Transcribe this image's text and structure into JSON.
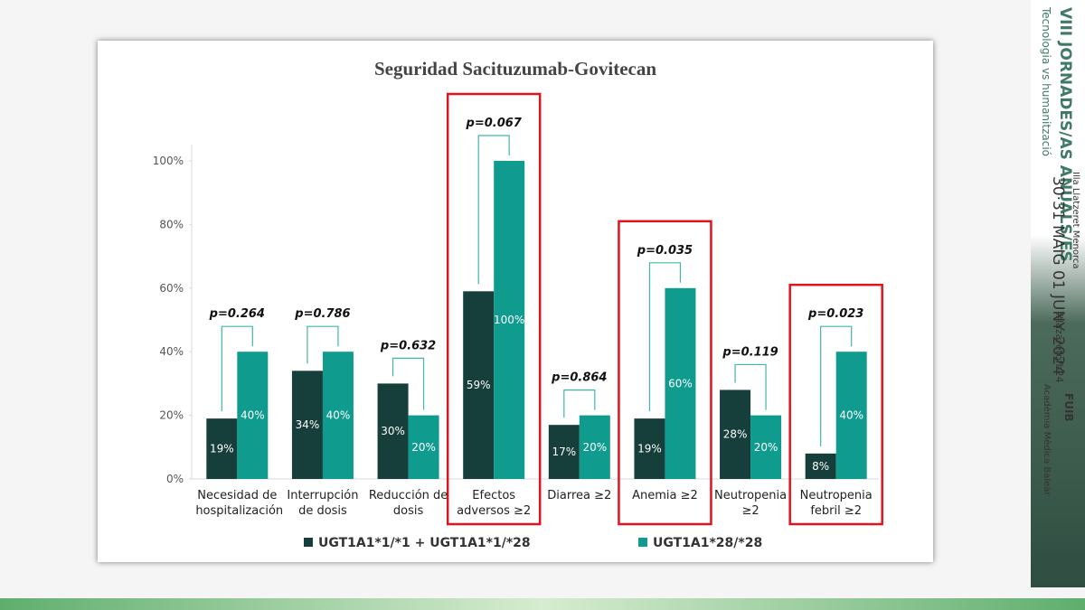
{
  "chart_data": {
    "type": "bar",
    "title": "Seguridad Sacituzumab-Govitecan",
    "categories": [
      "Necesidad de hospitalización",
      "Interrupción de dosis",
      "Reducción de dosis",
      "Efectos adversos ≥2",
      "Diarrea ≥2",
      "Anemia ≥2",
      "Neutropenia ≥2",
      "Neutropenia febril ≥2"
    ],
    "series": [
      {
        "name": "UGT1A1*1/*1 + UGT1A1*1/*28",
        "color": "#163f3b",
        "values": [
          19,
          34,
          30,
          59,
          17,
          19,
          28,
          8
        ],
        "value_labels": [
          "19%",
          "34%",
          "30%",
          "59%",
          "17%",
          "19%",
          "28%",
          "8%"
        ]
      },
      {
        "name": "UGT1A1*28/*28",
        "color": "#0f9b8e",
        "values": [
          40,
          40,
          20,
          100,
          20,
          60,
          20,
          40
        ],
        "value_labels": [
          "40%",
          "40%",
          "20%",
          "100%",
          "20%",
          "60%",
          "20%",
          "40%"
        ]
      }
    ],
    "annotations": [
      "p=0.264",
      "p=0.786",
      "p=0.632",
      "p=0.067",
      "p=0.864",
      "p=0.035",
      "p=0.119",
      "p=0.023"
    ],
    "highlighted": [
      3,
      5,
      7
    ],
    "highlight_color": "#e0141e",
    "ylim": [
      0,
      100
    ],
    "yticks": [
      {
        "value": 0,
        "label": "0%"
      },
      {
        "value": 20,
        "label": "20%"
      },
      {
        "value": 40,
        "label": "40%"
      },
      {
        "value": 60,
        "label": "60%"
      },
      {
        "value": 80,
        "label": "80%"
      },
      {
        "value": 100,
        "label": "100%"
      }
    ],
    "grid": false,
    "legend": "bottom"
  },
  "slide": {
    "event": "VIII JORNADES/AS ANUALS/ES",
    "subtitle": "Tecnologia vs humanització",
    "place": "Illa Llatzeret Menorca",
    "dates": "30·31 MAIG 01 JUNY 2024",
    "hashtag": "#lazaretofh24",
    "sponsor": "FUIB",
    "academy": "Acadèmia Mèdica Balear"
  }
}
